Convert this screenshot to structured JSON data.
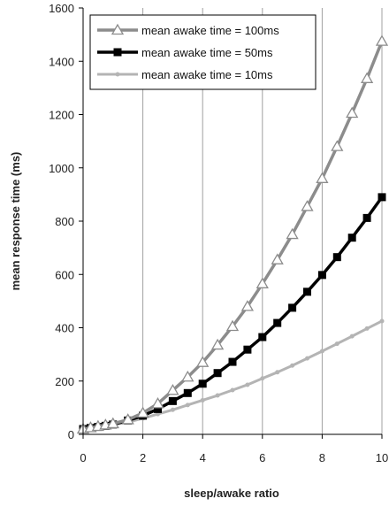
{
  "chart_data": {
    "type": "line",
    "xlabel": "sleep/awake ratio",
    "ylabel": "mean response time (ms)",
    "xlim": [
      0,
      10
    ],
    "ylim": [
      0,
      1600
    ],
    "xticks": [
      0,
      2,
      4,
      6,
      8,
      10
    ],
    "yticks": [
      0,
      200,
      400,
      600,
      800,
      1000,
      1200,
      1400,
      1600
    ],
    "grid": "vertical",
    "legend": "top-left",
    "x": [
      0,
      0.25,
      0.5,
      0.75,
      1,
      1.5,
      2,
      2.5,
      3,
      3.5,
      4,
      4.5,
      5,
      5.5,
      6,
      6.5,
      7,
      7.5,
      8,
      8.5,
      9,
      9.5,
      10
    ],
    "series": [
      {
        "name": "mean awake time = 100ms",
        "color": "#8c8c8c",
        "marker": "triangle-open",
        "values": [
          20,
          25,
          30,
          35,
          40,
          55,
          80,
          115,
          165,
          215,
          270,
          335,
          405,
          480,
          565,
          655,
          750,
          855,
          960,
          1080,
          1205,
          1335,
          1475
        ]
      },
      {
        "name": "mean awake time = 50ms",
        "color": "#000000",
        "marker": "square-filled",
        "values": [
          20,
          24,
          28,
          32,
          37,
          52,
          70,
          95,
          125,
          155,
          190,
          230,
          272,
          318,
          365,
          418,
          475,
          535,
          598,
          665,
          738,
          812,
          890
        ]
      },
      {
        "name": "mean awake time = 10ms",
        "color": "#b4b4b4",
        "marker": "dot",
        "values": [
          20,
          24,
          28,
          32,
          36,
          46,
          60,
          76,
          92,
          110,
          128,
          146,
          166,
          186,
          210,
          233,
          258,
          285,
          312,
          340,
          368,
          397,
          425
        ]
      }
    ]
  }
}
